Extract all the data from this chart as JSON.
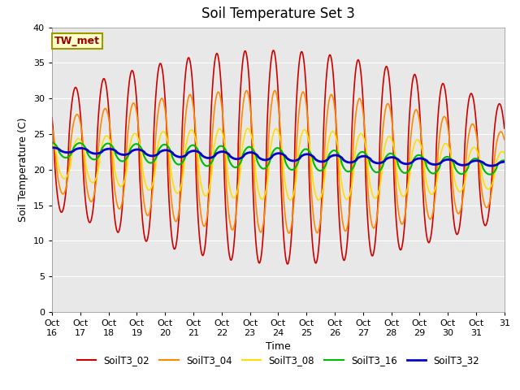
{
  "title": "Soil Temperature Set 3",
  "xlabel": "Time",
  "ylabel": "Soil Temperature (C)",
  "ylim": [
    0,
    40
  ],
  "yticks": [
    0,
    5,
    10,
    15,
    20,
    25,
    30,
    35,
    40
  ],
  "x_labels": [
    "Oct 16",
    "Oct 17",
    "Oct 18",
    "Oct 19",
    "Oct 20",
    "Oct 21",
    "Oct 22",
    "Oct 23",
    "Oct 24",
    "Oct 25",
    "Oct 26",
    "Oct 27",
    "Oct 28",
    "Oct 29",
    "Oct 30",
    "Oct 31"
  ],
  "x_label_last": "31",
  "annotation_text": "TW_met",
  "legend_labels": [
    "SoilT3_02",
    "SoilT3_04",
    "SoilT3_08",
    "SoilT3_16",
    "SoilT3_32"
  ],
  "line_colors": [
    "#cc0000",
    "#ff8800",
    "#ffdd00",
    "#00bb00",
    "#0000cc"
  ],
  "line_widths": [
    1.2,
    1.2,
    1.2,
    1.5,
    2.0
  ],
  "bg_color": "#e8e8e8",
  "title_fontsize": 12,
  "axis_fontsize": 9,
  "tick_fontsize": 8,
  "days": 16
}
